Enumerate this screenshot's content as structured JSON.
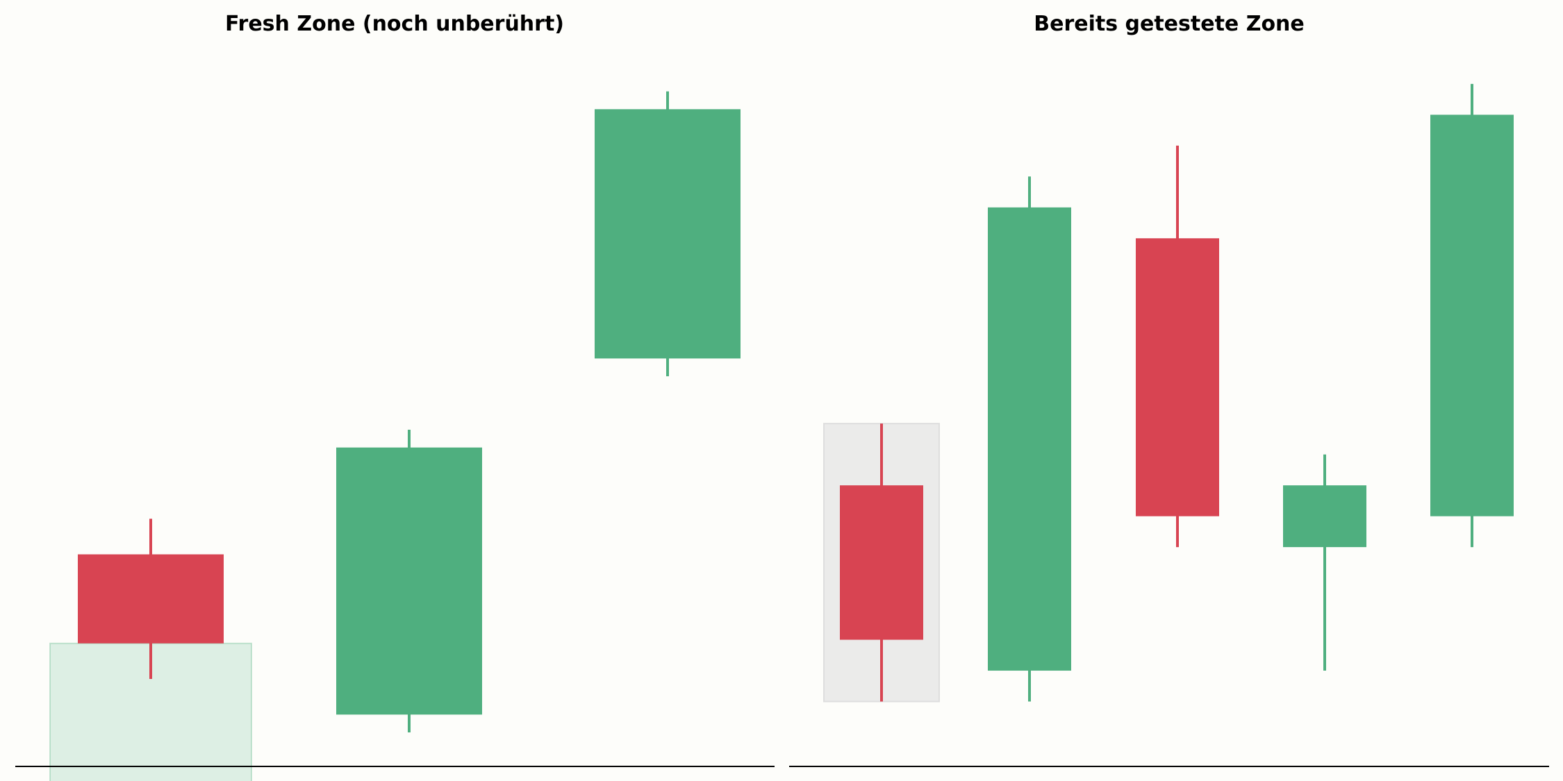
{
  "chart_data": [
    {
      "type": "candlestick",
      "title": "Fresh Zone (noch unberührt)",
      "xlabel": "",
      "ylabel": "",
      "grid": false,
      "zone": {
        "kind": "fresh",
        "low": 1.0,
        "high": 2.8,
        "color": "#4faf7f"
      },
      "candles": [
        {
          "open": 3.8,
          "close": 2.8,
          "high": 4.2,
          "low": 2.4,
          "direction": "bearish"
        },
        {
          "open": 2.0,
          "close": 5.0,
          "high": 5.2,
          "low": 1.8,
          "direction": "bullish"
        },
        {
          "open": 6.0,
          "close": 8.8,
          "high": 9.0,
          "low": 5.8,
          "direction": "bullish"
        }
      ],
      "ylim": [
        1.8,
        9.2
      ]
    },
    {
      "type": "candlestick",
      "title": "Bereits getestete Zone",
      "xlabel": "",
      "ylabel": "",
      "grid": false,
      "zone": {
        "kind": "tested",
        "low": 2.5,
        "high": 5.2,
        "color": "#dcdcdc"
      },
      "candles": [
        {
          "open": 4.6,
          "close": 3.1,
          "high": 5.2,
          "low": 2.5,
          "direction": "bearish"
        },
        {
          "open": 2.8,
          "close": 7.3,
          "high": 7.6,
          "low": 2.5,
          "direction": "bullish"
        },
        {
          "open": 7.0,
          "close": 4.3,
          "high": 7.9,
          "low": 4.0,
          "direction": "bearish"
        },
        {
          "open": 4.0,
          "close": 4.6,
          "high": 4.9,
          "low": 2.8,
          "direction": "bullish"
        },
        {
          "open": 4.3,
          "close": 8.2,
          "high": 8.5,
          "low": 4.0,
          "direction": "bullish"
        }
      ],
      "ylim": [
        2.2,
        8.6
      ]
    }
  ],
  "colors": {
    "bullish": "#4faf7f",
    "bearish": "#d84452",
    "background": "#fdfdfa",
    "baseline": "#000000"
  }
}
